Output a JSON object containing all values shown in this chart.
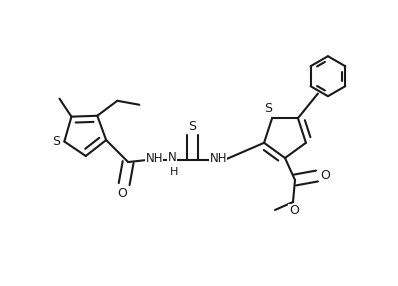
{
  "bg_color": "#ffffff",
  "line_color": "#1a1a1a",
  "line_width": 1.5,
  "figsize": [
    3.98,
    2.86
  ],
  "dpi": 100,
  "xlim": [
    0,
    3.98
  ],
  "ylim": [
    0,
    2.86
  ]
}
